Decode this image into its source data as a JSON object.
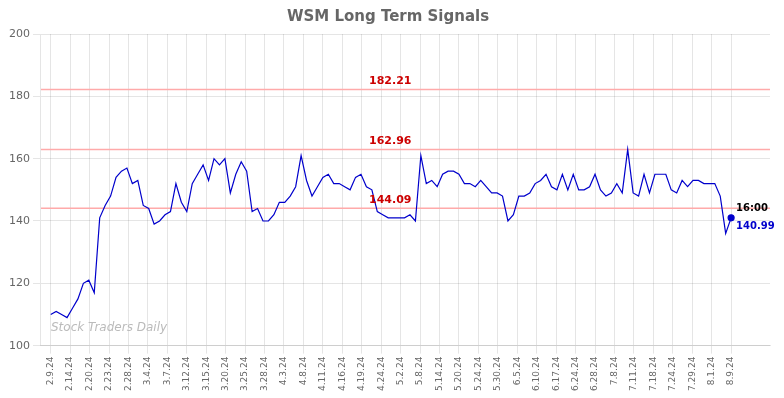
{
  "chart_data": {
    "type": "line",
    "title": "WSM Long Term Signals",
    "x": [
      0,
      0.28,
      0.56,
      0.84,
      1.12,
      1.4,
      1.68,
      1.96,
      2.24,
      2.52,
      2.8,
      3.08,
      3.36,
      3.64,
      3.92,
      4.2,
      4.48,
      4.76,
      5.04,
      5.32,
      5.6,
      5.88,
      6.16,
      6.44,
      6.72,
      7,
      7.28,
      7.56,
      7.84,
      8.12,
      8.4,
      8.68,
      8.96,
      9.24,
      9.52,
      9.8,
      10.08,
      10.36,
      10.64,
      10.92,
      11.2,
      11.48,
      11.76,
      12.04,
      12.32,
      12.6,
      12.88,
      13.16,
      13.44,
      13.72,
      14,
      14.28,
      14.56,
      14.84,
      15.12,
      15.4,
      15.68,
      15.96,
      16.24,
      16.52,
      16.8,
      17.08,
      17.36,
      17.64,
      17.92,
      18.2,
      18.48,
      18.76,
      19.04,
      19.32,
      19.6,
      19.88,
      20.16,
      20.44,
      20.72,
      21,
      21.28,
      21.56,
      21.84,
      22.12,
      22.4,
      22.68,
      22.96,
      23.24,
      23.52,
      23.8,
      24.08,
      24.36,
      24.64,
      24.92,
      25.2,
      25.48,
      25.76,
      26.04,
      26.32,
      26.6,
      26.88,
      27.16,
      27.44,
      27.72,
      28,
      28.28,
      28.56,
      28.84,
      29.12,
      29.4,
      29.68,
      29.96,
      30.24,
      30.52,
      30.8,
      31.08,
      31.36,
      31.64,
      31.92,
      32.2,
      32.48,
      32.76,
      33.04,
      33.32,
      33.6,
      33.88,
      34.16,
      34.44,
      34.72,
      35
    ],
    "values": [
      110,
      111,
      110,
      109,
      112,
      115,
      120,
      121,
      117,
      141,
      145,
      148,
      154,
      156,
      157,
      152,
      153,
      145,
      144,
      139,
      140,
      142,
      143,
      152,
      146,
      143,
      152,
      155,
      158,
      153,
      160,
      158,
      160,
      149,
      155,
      159,
      156,
      143,
      144,
      140,
      140,
      142,
      146,
      146,
      148,
      151,
      161,
      153,
      148,
      151,
      154,
      155,
      152,
      152,
      151,
      150,
      154,
      155,
      151,
      150,
      143,
      142,
      141,
      141,
      141,
      141,
      142,
      140,
      161,
      152,
      153,
      151,
      155,
      156,
      156,
      155,
      152,
      152,
      151,
      153,
      151,
      149,
      149,
      148,
      140,
      142,
      148,
      148,
      149,
      152,
      153,
      155,
      151,
      150,
      155,
      150,
      155,
      150,
      150,
      151,
      155,
      150,
      148,
      149,
      152,
      149,
      163,
      149,
      148,
      155,
      149,
      155,
      155,
      155,
      150,
      149,
      153,
      151,
      153,
      153,
      152,
      152,
      152,
      148,
      136,
      141
    ],
    "color": "#0000cc",
    "xlim": [
      -0.5,
      37
    ],
    "xticks": [
      {
        "value": 0,
        "label": "2.9.24"
      },
      {
        "value": 1,
        "label": "2.14.24"
      },
      {
        "value": 2,
        "label": "2.20.24"
      },
      {
        "value": 3,
        "label": "2.23.24"
      },
      {
        "value": 4,
        "label": "2.28.24"
      },
      {
        "value": 5,
        "label": "3.4.24"
      },
      {
        "value": 6,
        "label": "3.7.24"
      },
      {
        "value": 7,
        "label": "3.12.24"
      },
      {
        "value": 8,
        "label": "3.15.24"
      },
      {
        "value": 9,
        "label": "3.20.24"
      },
      {
        "value": 10,
        "label": "3.25.24"
      },
      {
        "value": 11,
        "label": "3.28.24"
      },
      {
        "value": 12,
        "label": "4.3.24"
      },
      {
        "value": 13,
        "label": "4.8.24"
      },
      {
        "value": 14,
        "label": "4.11.24"
      },
      {
        "value": 15,
        "label": "4.16.24"
      },
      {
        "value": 16,
        "label": "4.19.24"
      },
      {
        "value": 17,
        "label": "4.24.24"
      },
      {
        "value": 18,
        "label": "5.2.24"
      },
      {
        "value": 19,
        "label": "5.8.24"
      },
      {
        "value": 20,
        "label": "5.14.24"
      },
      {
        "value": 21,
        "label": "5.20.24"
      },
      {
        "value": 22,
        "label": "5.24.24"
      },
      {
        "value": 23,
        "label": "5.30.24"
      },
      {
        "value": 24,
        "label": "6.5.24"
      },
      {
        "value": 25,
        "label": "6.10.24"
      },
      {
        "value": 26,
        "label": "6.17.24"
      },
      {
        "value": 27,
        "label": "6.24.24"
      },
      {
        "value": 28,
        "label": "6.28.24"
      },
      {
        "value": 29,
        "label": "7.8.24"
      },
      {
        "value": 30,
        "label": "7.11.24"
      },
      {
        "value": 31,
        "label": "7.18.24"
      },
      {
        "value": 32,
        "label": "7.24.24"
      },
      {
        "value": 33,
        "label": "7.29.24"
      },
      {
        "value": 34,
        "label": "8.1.24"
      },
      {
        "value": 35,
        "label": "8.9.24"
      }
    ],
    "ylim": [
      100,
      200
    ],
    "yticks": [
      100,
      120,
      140,
      160,
      180,
      200
    ],
    "grid": true,
    "hlines": [
      {
        "value": 182.21,
        "label": "182.21",
        "color": "#ffaaaa",
        "label_color": "#cc0000"
      },
      {
        "value": 162.96,
        "label": "162.96",
        "color": "#ffaaaa",
        "label_color": "#cc0000"
      },
      {
        "value": 144.09,
        "label": "144.09",
        "color": "#ffaaaa",
        "label_color": "#cc0000"
      }
    ],
    "annotations": [
      {
        "text": "16:00",
        "color": "#000000"
      },
      {
        "text": "140.99",
        "color": "#0000cc"
      }
    ],
    "watermark": "Stock Traders Daily"
  }
}
